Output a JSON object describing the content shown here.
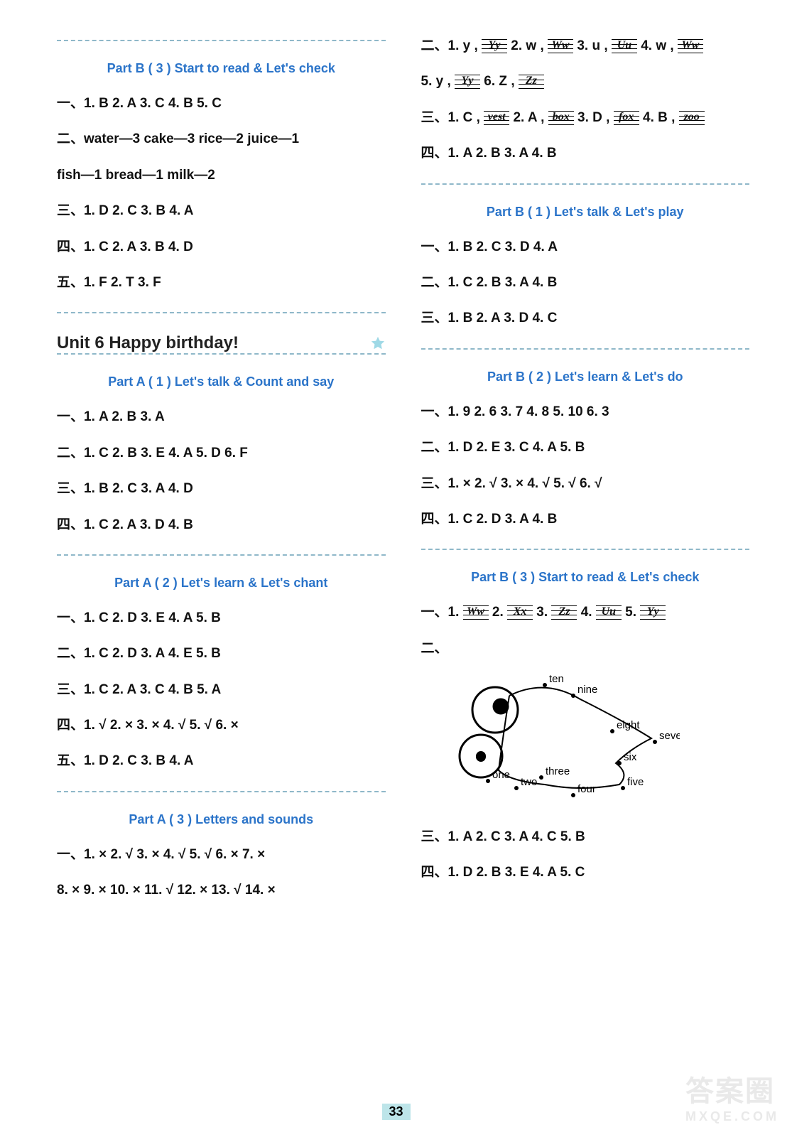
{
  "page_number": "33",
  "left": {
    "pb3_title": "Part B ( 3 )  Start to read & Let's check",
    "l1": "一、1. B   2. A   3. C   4. B   5. C",
    "l2a": "二、water—3     cake—3     rice—2     juice—1",
    "l2b": "fish—1   bread—1   milk—2",
    "l3": "三、1. D   2. C   3. B   4. A",
    "l4": "四、1. C   2. A   3. B   4. D",
    "l5": "五、1. F   2. T   3. F",
    "unit": "Unit 6   Happy birthday!",
    "pa1_title": "Part A ( 1 )  Let's talk & Count and say",
    "pa1_l1": "一、1. A   2. B   3. A",
    "pa1_l2": "二、1. C   2. B   3. E   4. A   5. D   6. F",
    "pa1_l3": "三、1. B   2. C   3. A   4. D",
    "pa1_l4": "四、1. C   2. A   3. D   4. B",
    "pa2_title": "Part A ( 2 )  Let's learn & Let's chant",
    "pa2_l1": "一、1. C   2. D   3. E   4. A   5. B",
    "pa2_l2": "二、1. C   2. D   3. A   4. E   5. B",
    "pa2_l3": "三、1. C   2. A   3. C   4. B   5. A",
    "pa2_l4": "四、1. √   2. ×   3. ×   4. √   5. √   6. ×",
    "pa2_l5": "五、1. D   2. C   3. B   4. A",
    "pa3_title": "Part A ( 3 )  Letters and sounds",
    "pa3_l1": "一、1. ×   2. √   3. ×   4. √   5. √   6. ×   7. ×",
    "pa3_l2": "8. ×   9. ×   10. ×   11. √   12. ×   13. √   14. ×"
  },
  "right": {
    "r2_items": [
      {
        "pre": "二、1. y , ",
        "w": "Yy"
      },
      {
        "pre": "   2. w , ",
        "w": "Ww"
      },
      {
        "pre": "   3. u , ",
        "w": "Uu"
      },
      {
        "pre": "   4. w , ",
        "w": "Ww"
      }
    ],
    "r2_items2": [
      {
        "pre": "5. y , ",
        "w": "Yy"
      },
      {
        "pre": "   6. Z , ",
        "w": "Zz"
      }
    ],
    "r3_items": [
      {
        "pre": "三、1. C , ",
        "w": "vest"
      },
      {
        "pre": "   2. A , ",
        "w": "box"
      },
      {
        "pre": "   3. D , ",
        "w": "fox"
      },
      {
        "pre": "   4. B , ",
        "w": "zoo"
      }
    ],
    "r4": "四、1. A   2. B   3. A   4. B",
    "pb1_title": "Part B ( 1 )  Let's talk & Let's play",
    "pb1_l1": "一、1. B   2. C   3. D   4. A",
    "pb1_l2": "二、1. C   2. B   3. A   4. B",
    "pb1_l3": "三、1. B   2. A   3. D   4. C",
    "pb2_title": "Part B ( 2 )  Let's learn & Let's do",
    "pb2_l1": "一、1. 9   2. 6   3. 7   4. 8   5. 10   6. 3",
    "pb2_l2": "二、1. D   2. E   3. C   4. A   5. B",
    "pb2_l3": "三、1. ×   2. √   3. ×   4. √   5. √   6. √",
    "pb2_l4": "四、1. C   2. D   3. A   4. B",
    "pb3_title": "Part B ( 3 )  Start to read & Let's check",
    "pb3_items": [
      {
        "pre": "一、1. ",
        "w": "Ww"
      },
      {
        "pre": "   2. ",
        "w": "Xx"
      },
      {
        "pre": "   3. ",
        "w": "Zz"
      },
      {
        "pre": "   4. ",
        "w": "Uu"
      },
      {
        "pre": "   5. ",
        "w": "Yy"
      }
    ],
    "pb3_r2_prefix": "二、",
    "fish_labels": [
      "ten",
      "nine",
      "eight",
      "seven",
      "six",
      "five",
      "four",
      "three",
      "two",
      "one"
    ],
    "pb3_l3": "三、1. A   2. C   3. A   4. C   5. B",
    "pb3_l4": "四、1. D   2. B   3. E   4. A   5. C"
  },
  "watermark": {
    "main": "答案圈",
    "sub": "MXQE.COM"
  }
}
